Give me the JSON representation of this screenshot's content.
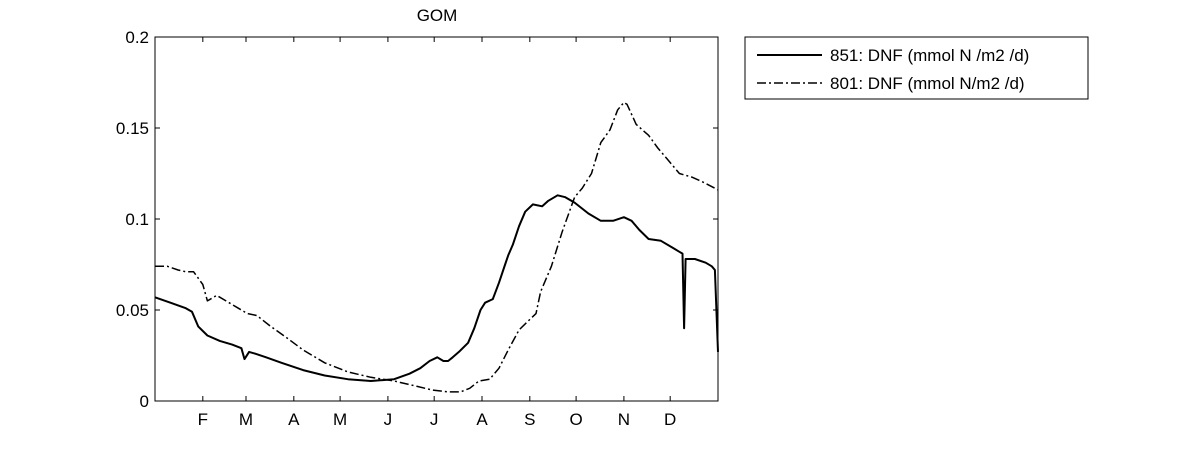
{
  "chart_data": {
    "type": "line",
    "title": "GOM",
    "xlabel": "",
    "ylabel": "",
    "xlim": [
      0,
      365
    ],
    "ylim": [
      0,
      0.2
    ],
    "grid": false,
    "legend_position": "outside-top-right",
    "x_ticks": [
      {
        "label": "F",
        "x": 31
      },
      {
        "label": "M",
        "x": 59
      },
      {
        "label": "A",
        "x": 90
      },
      {
        "label": "M",
        "x": 120
      },
      {
        "label": "J",
        "x": 151
      },
      {
        "label": "J",
        "x": 181
      },
      {
        "label": "A",
        "x": 212
      },
      {
        "label": "S",
        "x": 243
      },
      {
        "label": "O",
        "x": 273
      },
      {
        "label": "N",
        "x": 304
      },
      {
        "label": "D",
        "x": 334
      }
    ],
    "y_ticks": [
      {
        "label": "0",
        "y": 0
      },
      {
        "label": "0.05",
        "y": 0.05
      },
      {
        "label": "0.1",
        "y": 0.1
      },
      {
        "label": "0.15",
        "y": 0.15
      },
      {
        "label": "0.2",
        "y": 0.2
      }
    ],
    "series": [
      {
        "name": "851: DNF (mmol N /m2 /d)",
        "style": "solid",
        "color": "#000000",
        "x": [
          0,
          10,
          20,
          24,
          28,
          34,
          42,
          50,
          56,
          58,
          61,
          65,
          72,
          82,
          96,
          110,
          125,
          140,
          155,
          165,
          172,
          178,
          183,
          187,
          190,
          193,
          197,
          203,
          207,
          211,
          214,
          219,
          223,
          227,
          229,
          232,
          236,
          240,
          245,
          251,
          255,
          261,
          266,
          272,
          281,
          289,
          297,
          304,
          309,
          314,
          320,
          328,
          336,
          340,
          342,
          343,
          344,
          350,
          357,
          361,
          363,
          365
        ],
        "y": [
          0.057,
          0.054,
          0.051,
          0.049,
          0.041,
          0.036,
          0.033,
          0.031,
          0.029,
          0.023,
          0.027,
          0.026,
          0.024,
          0.021,
          0.017,
          0.014,
          0.012,
          0.011,
          0.012,
          0.015,
          0.018,
          0.022,
          0.024,
          0.022,
          0.022,
          0.024,
          0.027,
          0.032,
          0.04,
          0.05,
          0.054,
          0.056,
          0.065,
          0.075,
          0.08,
          0.086,
          0.096,
          0.104,
          0.108,
          0.107,
          0.11,
          0.113,
          0.112,
          0.109,
          0.103,
          0.099,
          0.099,
          0.101,
          0.099,
          0.094,
          0.089,
          0.088,
          0.084,
          0.082,
          0.081,
          0.04,
          0.078,
          0.078,
          0.076,
          0.074,
          0.072,
          0.027
        ]
      },
      {
        "name": "801: DNF (mmol N/m2 /d)",
        "style": "dashdot",
        "color": "#000000",
        "x": [
          0,
          8,
          15,
          20,
          25,
          31,
          34,
          40,
          46,
          54,
          60,
          66,
          75,
          85,
          96,
          110,
          125,
          140,
          155,
          170,
          180,
          190,
          198,
          204,
          210,
          217,
          223,
          229,
          236,
          242,
          247,
          250,
          257,
          264,
          272,
          277,
          283,
          289,
          295,
          300,
          304,
          306,
          312,
          320,
          326,
          332,
          340,
          348,
          356,
          365
        ],
        "y": [
          0.074,
          0.074,
          0.072,
          0.071,
          0.071,
          0.064,
          0.055,
          0.058,
          0.055,
          0.051,
          0.048,
          0.047,
          0.041,
          0.035,
          0.028,
          0.021,
          0.016,
          0.013,
          0.011,
          0.008,
          0.006,
          0.005,
          0.005,
          0.007,
          0.011,
          0.012,
          0.018,
          0.028,
          0.039,
          0.044,
          0.048,
          0.06,
          0.074,
          0.093,
          0.112,
          0.117,
          0.125,
          0.142,
          0.149,
          0.16,
          0.164,
          0.163,
          0.152,
          0.146,
          0.139,
          0.133,
          0.125,
          0.123,
          0.12,
          0.116
        ]
      }
    ]
  }
}
